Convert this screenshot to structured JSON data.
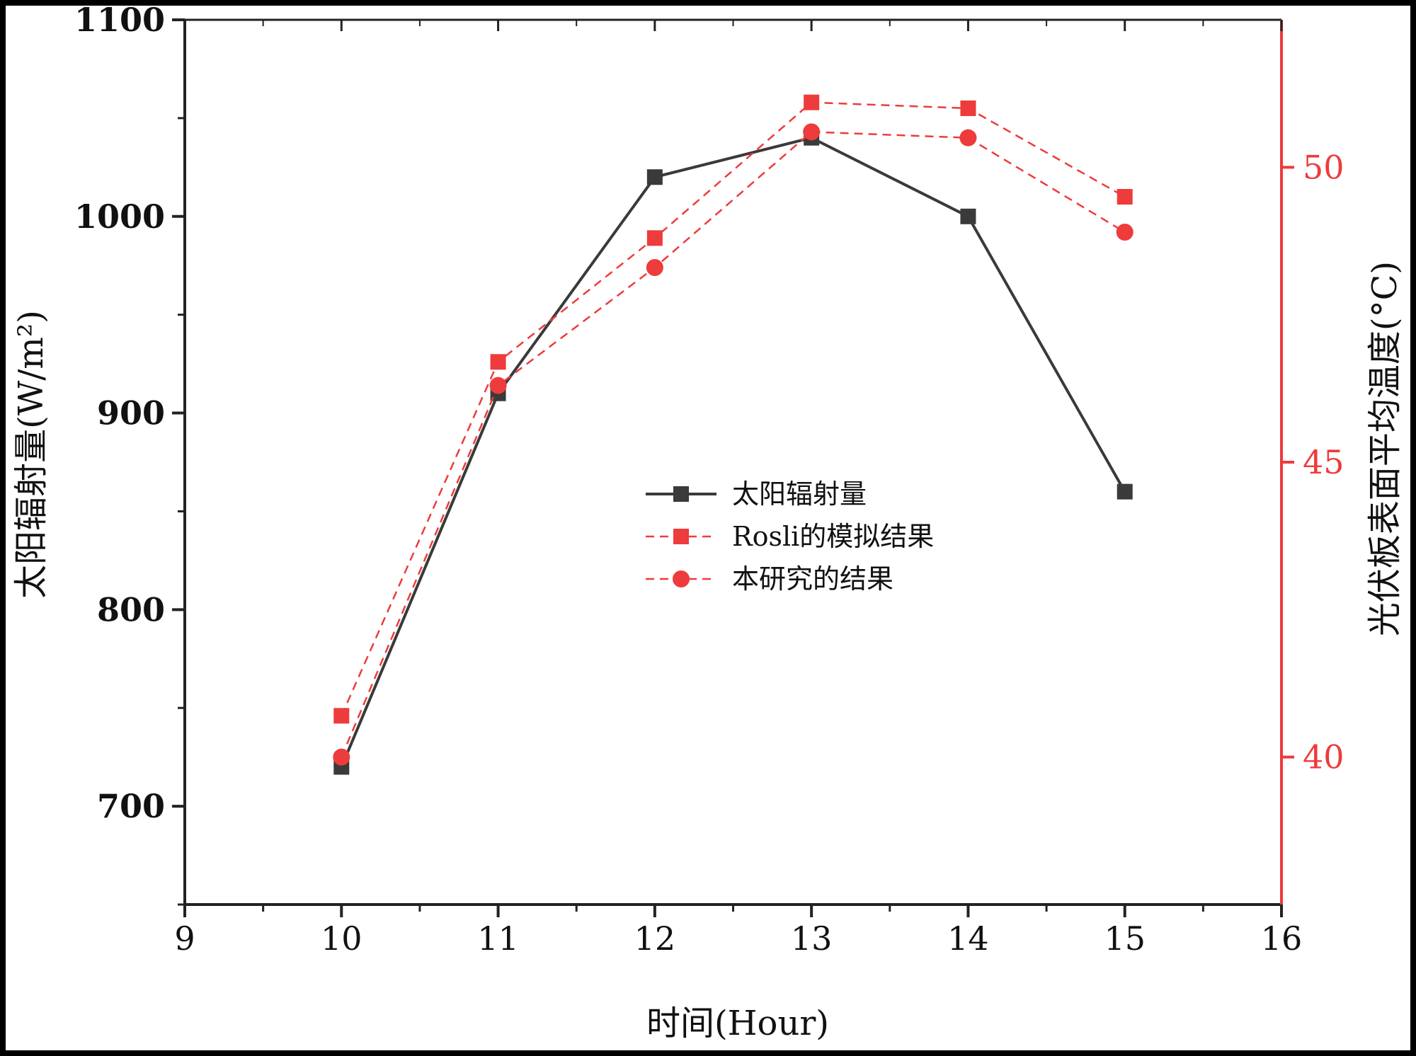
{
  "chart_data": {
    "type": "line",
    "title": "",
    "xlabel": "时间(Hour)",
    "ylabel_left": "太阳辐射量(W/m²)",
    "ylabel_right": "光伏板表面平均温度(°C)",
    "xlim": [
      9,
      16
    ],
    "x_ticks": [
      "9",
      "10",
      "11",
      "12",
      "13",
      "14",
      "15",
      "16"
    ],
    "ylim_left": [
      650,
      1100
    ],
    "y_ticks_left": [
      "700",
      "800",
      "900",
      "1000",
      "1100"
    ],
    "ylim_right": [
      37.5,
      52.5
    ],
    "y_ticks_right": [
      "40",
      "45",
      "50"
    ],
    "legend_position": "center",
    "x": [
      10,
      11,
      12,
      13,
      14,
      15
    ],
    "series": [
      {
        "name": "太阳辐射量",
        "axis": "left",
        "marker": "square",
        "line": "solid",
        "color": "#3a3a3a",
        "values": [
          720,
          910,
          1020,
          1040,
          1000,
          860
        ]
      },
      {
        "name": "Rosli的模拟结果",
        "axis": "right",
        "marker": "square",
        "line": "dashed",
        "color": "#ee3b3b",
        "values": [
          40.7,
          46.7,
          48.8,
          51.1,
          51.0,
          49.5
        ]
      },
      {
        "name": "本研究的结果",
        "axis": "right",
        "marker": "circle",
        "line": "dashed",
        "color": "#ee3b3b",
        "values": [
          40.0,
          46.3,
          48.3,
          50.6,
          50.5,
          48.9
        ]
      }
    ]
  }
}
